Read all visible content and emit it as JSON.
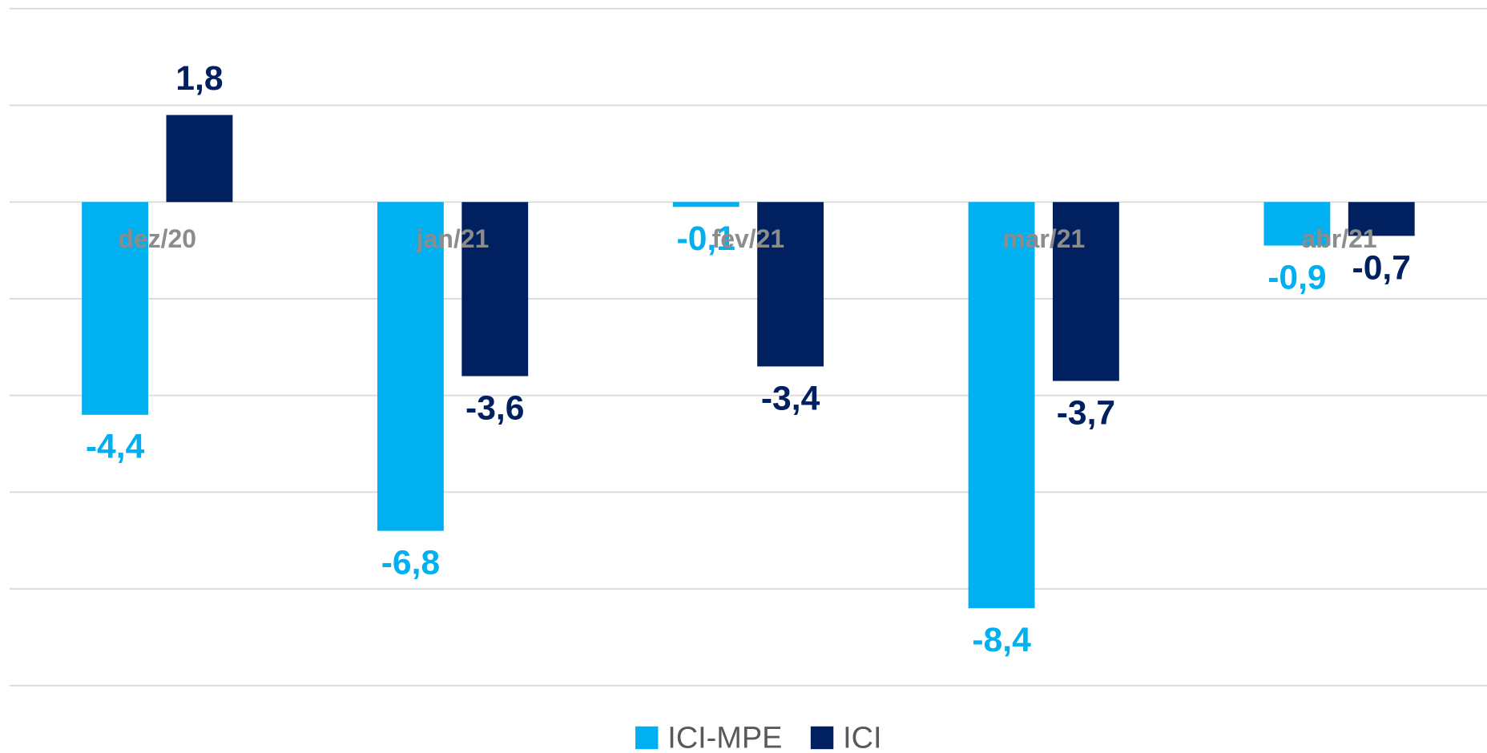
{
  "chart_data": {
    "type": "bar",
    "categories": [
      "dez/20",
      "jan/21",
      "fev/21",
      "mar/21",
      "abr/21"
    ],
    "series": [
      {
        "name": "ICI-MPE",
        "color": "#00b0f0",
        "values": [
          -4.4,
          -6.8,
          -0.1,
          -8.4,
          -0.9
        ],
        "value_labels": [
          "-4,4",
          "-6,8",
          "-0,1",
          "-8,4",
          "-0,9"
        ]
      },
      {
        "name": "ICI",
        "color": "#002060",
        "values": [
          1.8,
          -3.6,
          -3.4,
          -3.7,
          -0.7
        ],
        "value_labels": [
          "1,8",
          "-3,6",
          "-3,4",
          "-3,7",
          "-0,7"
        ]
      }
    ],
    "ylim": [
      -10,
      4
    ],
    "yticks": [
      -10,
      -8,
      -6,
      -4,
      -2,
      0,
      2,
      4
    ],
    "grid": true,
    "legend": "bottom"
  }
}
